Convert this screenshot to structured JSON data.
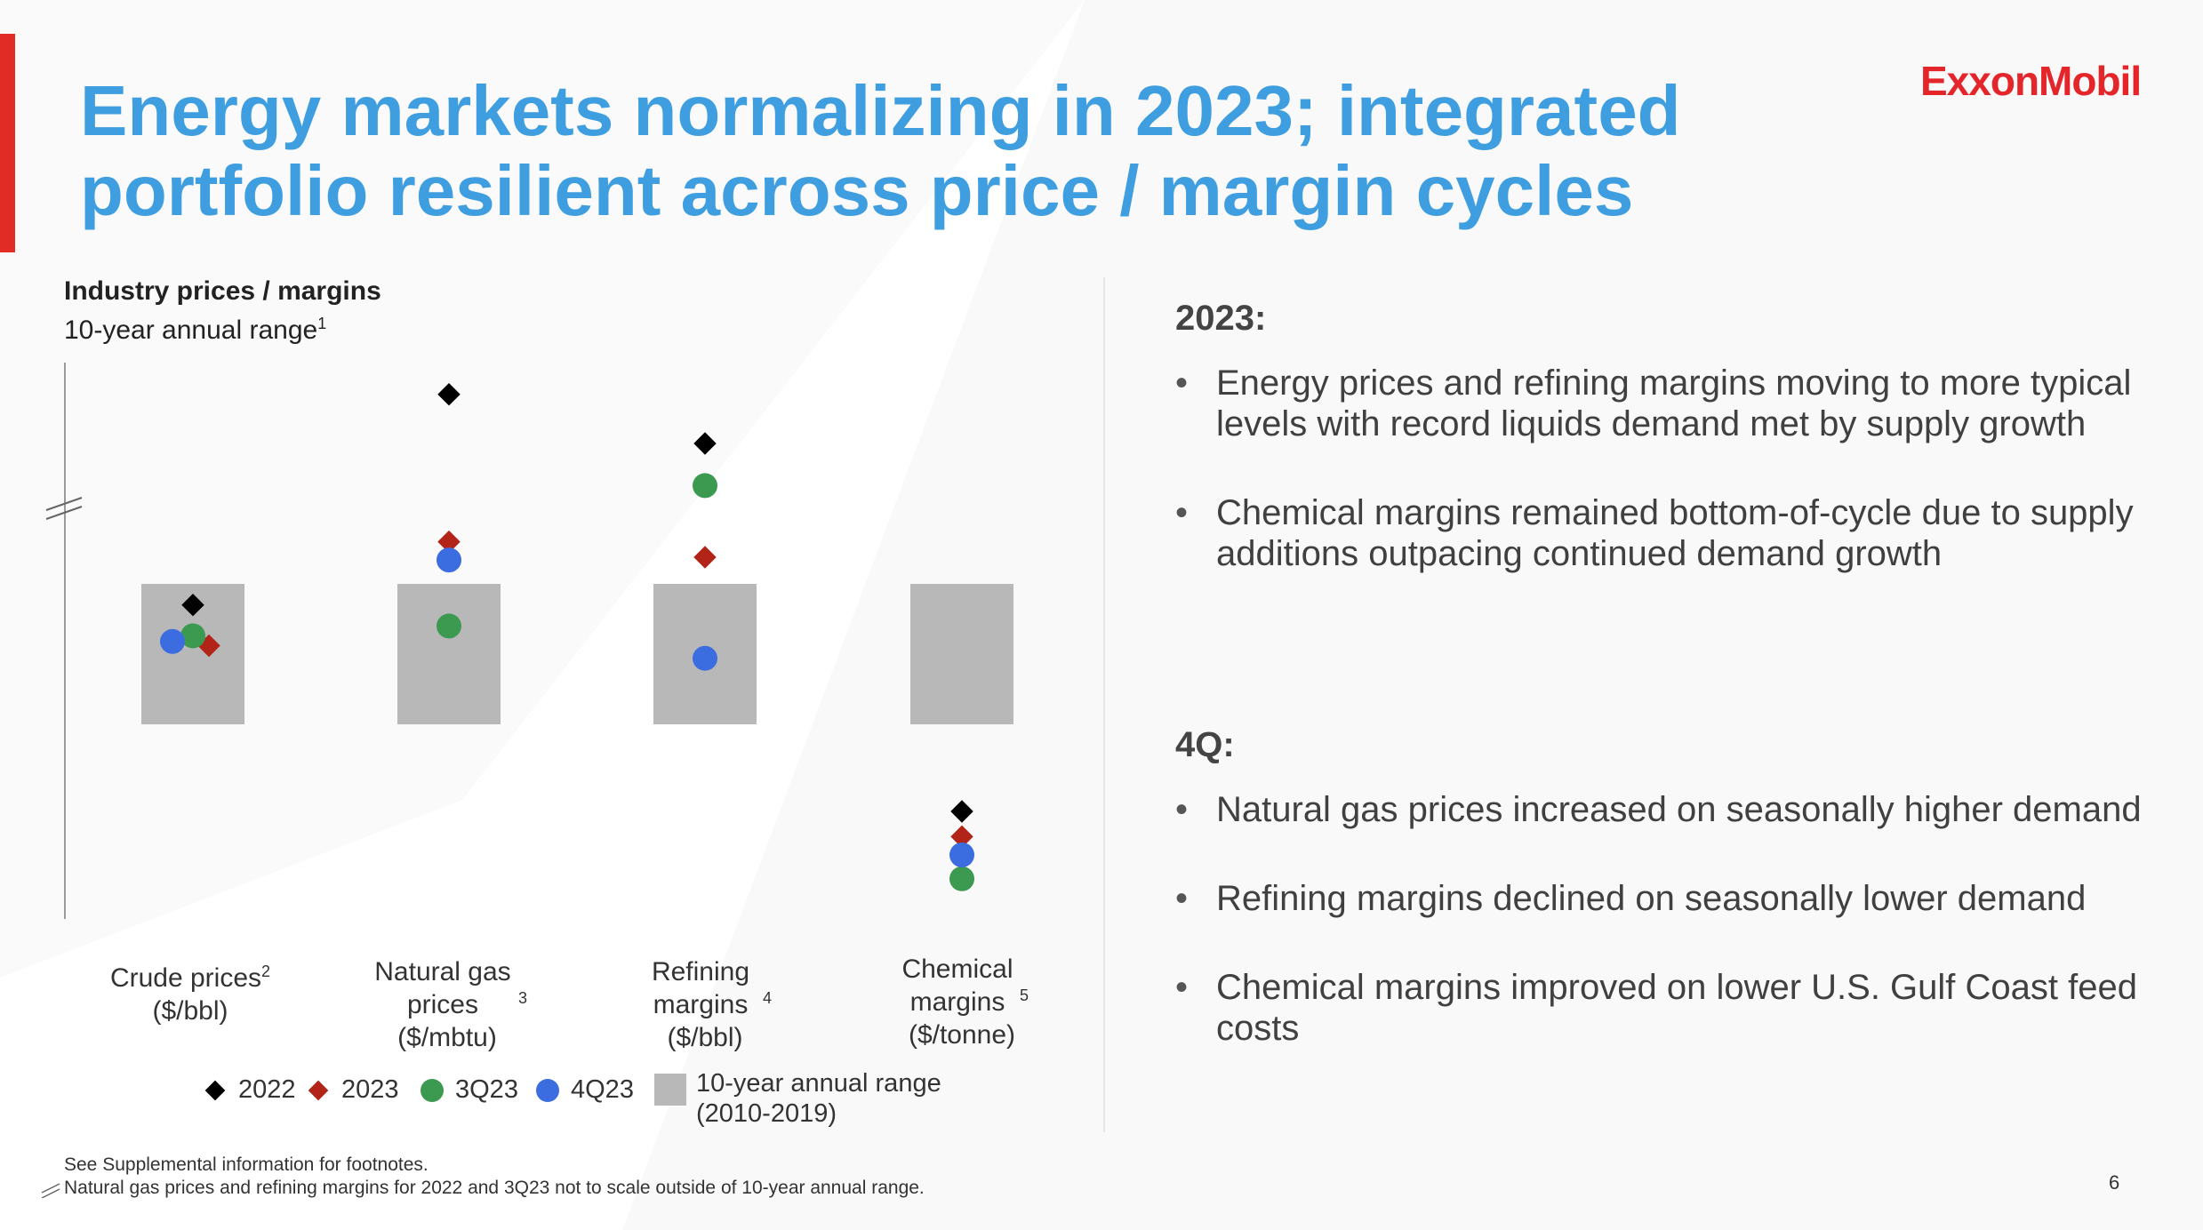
{
  "page": {
    "title": "Energy markets normalizing in 2023; integrated portfolio resilient across price / margin cycles",
    "logo": "ExxonMobil",
    "page_number": "6"
  },
  "chart_heading": {
    "bold": "Industry prices / margins",
    "sub": "10-year annual range",
    "sub_sup": "1"
  },
  "chart_data": {
    "type": "scatter",
    "title": "Industry prices / margins",
    "subtitle": "10-year annual range",
    "categories": [
      {
        "name": "Crude prices",
        "sup": "2",
        "unit": "($/bbl)"
      },
      {
        "name": "Natural gas prices",
        "sup": "3",
        "unit": "($/mbtu)"
      },
      {
        "name": "Refining margins",
        "sup": "4",
        "unit": "($/bbl)"
      },
      {
        "name": "Chemical margins",
        "sup": "5",
        "unit": "($/tonne)"
      }
    ],
    "range_band": {
      "name": "10-year annual range",
      "detail": "(2010-2019)",
      "low": 0,
      "high": 1
    },
    "value_scale": "normalized position relative to each 10-year annual range (0 = range low, 1 = range high); above the axis break not to scale",
    "series": [
      {
        "name": "2022",
        "marker": "diamond",
        "color": "#000000",
        "values": [
          0.85,
          2.35,
          2.0,
          -0.62
        ]
      },
      {
        "name": "2023",
        "marker": "diamond",
        "color": "#b22418",
        "values": [
          0.56,
          1.3,
          1.19,
          -0.8
        ]
      },
      {
        "name": "3Q23",
        "marker": "circle",
        "color": "#3c9a50",
        "values": [
          0.63,
          0.7,
          1.7,
          -1.1
        ]
      },
      {
        "name": "4Q23",
        "marker": "circle",
        "color": "#3b6de0",
        "values": [
          0.59,
          1.17,
          0.47,
          -0.93
        ]
      }
    ]
  },
  "legend": {
    "range_label_line1": "10-year annual range",
    "range_label_line2": "(2010-2019)"
  },
  "right_panel": {
    "section1_heading": "2023:",
    "section1_bullets": [
      "Energy prices and refining margins moving to more typical levels with record liquids demand met by supply growth",
      "Chemical margins remained bottom-of-cycle due to supply additions outpacing continued demand growth"
    ],
    "section2_heading": "4Q:",
    "section2_bullets": [
      "Natural gas prices increased on seasonally higher demand",
      "Refining margins declined on seasonally lower demand",
      "Chemical margins improved on lower U.S. Gulf Coast feed costs"
    ]
  },
  "footnotes": {
    "line1": "See Supplemental information for footnotes.",
    "line2": "Natural gas prices and refining margins for 2022 and 3Q23 not to scale outside of 10-year annual range."
  },
  "colors": {
    "title_blue": "#3f9ee0",
    "brand_red": "#e4262b",
    "band_gray": "#b8b8b8"
  }
}
